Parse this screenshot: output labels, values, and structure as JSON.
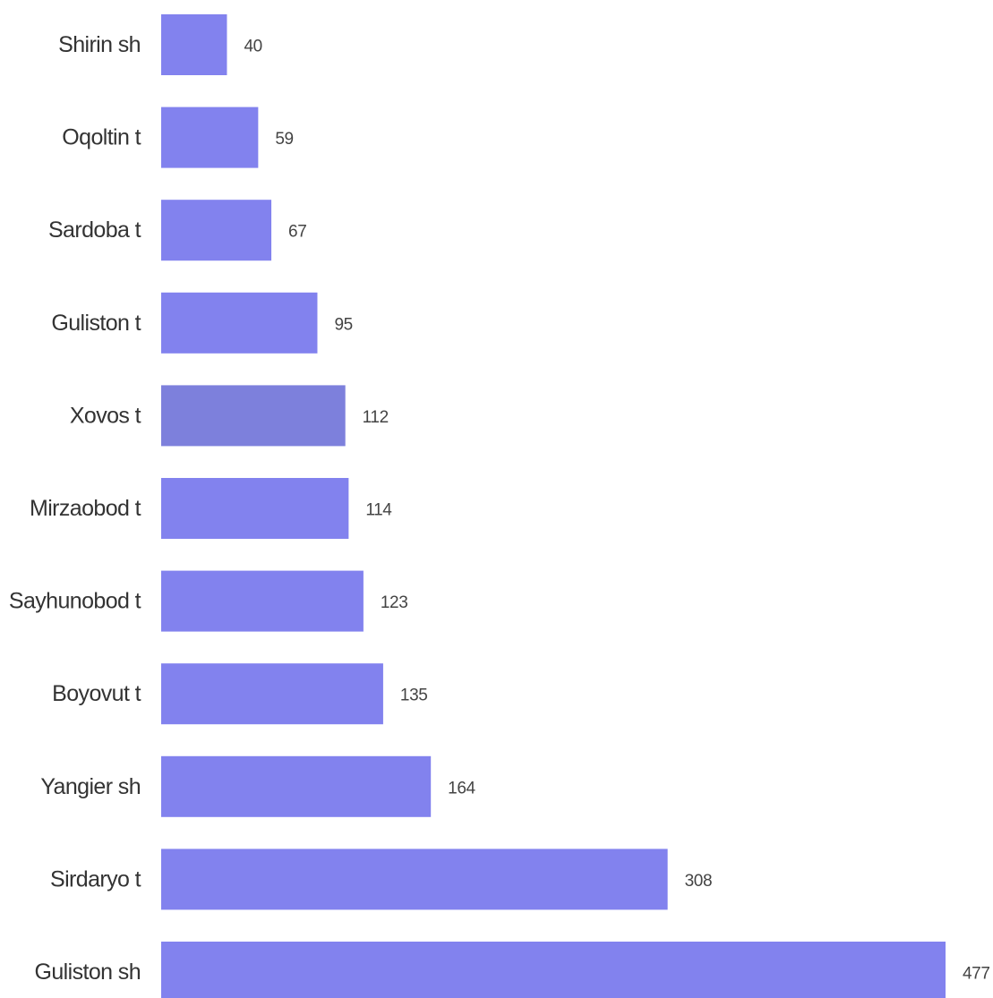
{
  "chart_data": {
    "type": "bar",
    "orientation": "horizontal",
    "title": "",
    "xlabel": "",
    "ylabel": "",
    "categories": [
      "Shirin sh",
      "Oqoltin t",
      "Sardoba t",
      "Guliston t",
      "Xovos t",
      "Mirzaobod t",
      "Sayhunobod t",
      "Boyovut t",
      "Yangier sh",
      "Sirdaryo t",
      "Guliston sh"
    ],
    "values": [
      40,
      59,
      67,
      95,
      112,
      114,
      123,
      135,
      164,
      308,
      477
    ],
    "xlim": [
      0,
      477
    ],
    "grid": false,
    "legend": "none",
    "bar_color": "#8282ee",
    "highlight_color": "#7d80dc",
    "highlight_index": 4
  }
}
